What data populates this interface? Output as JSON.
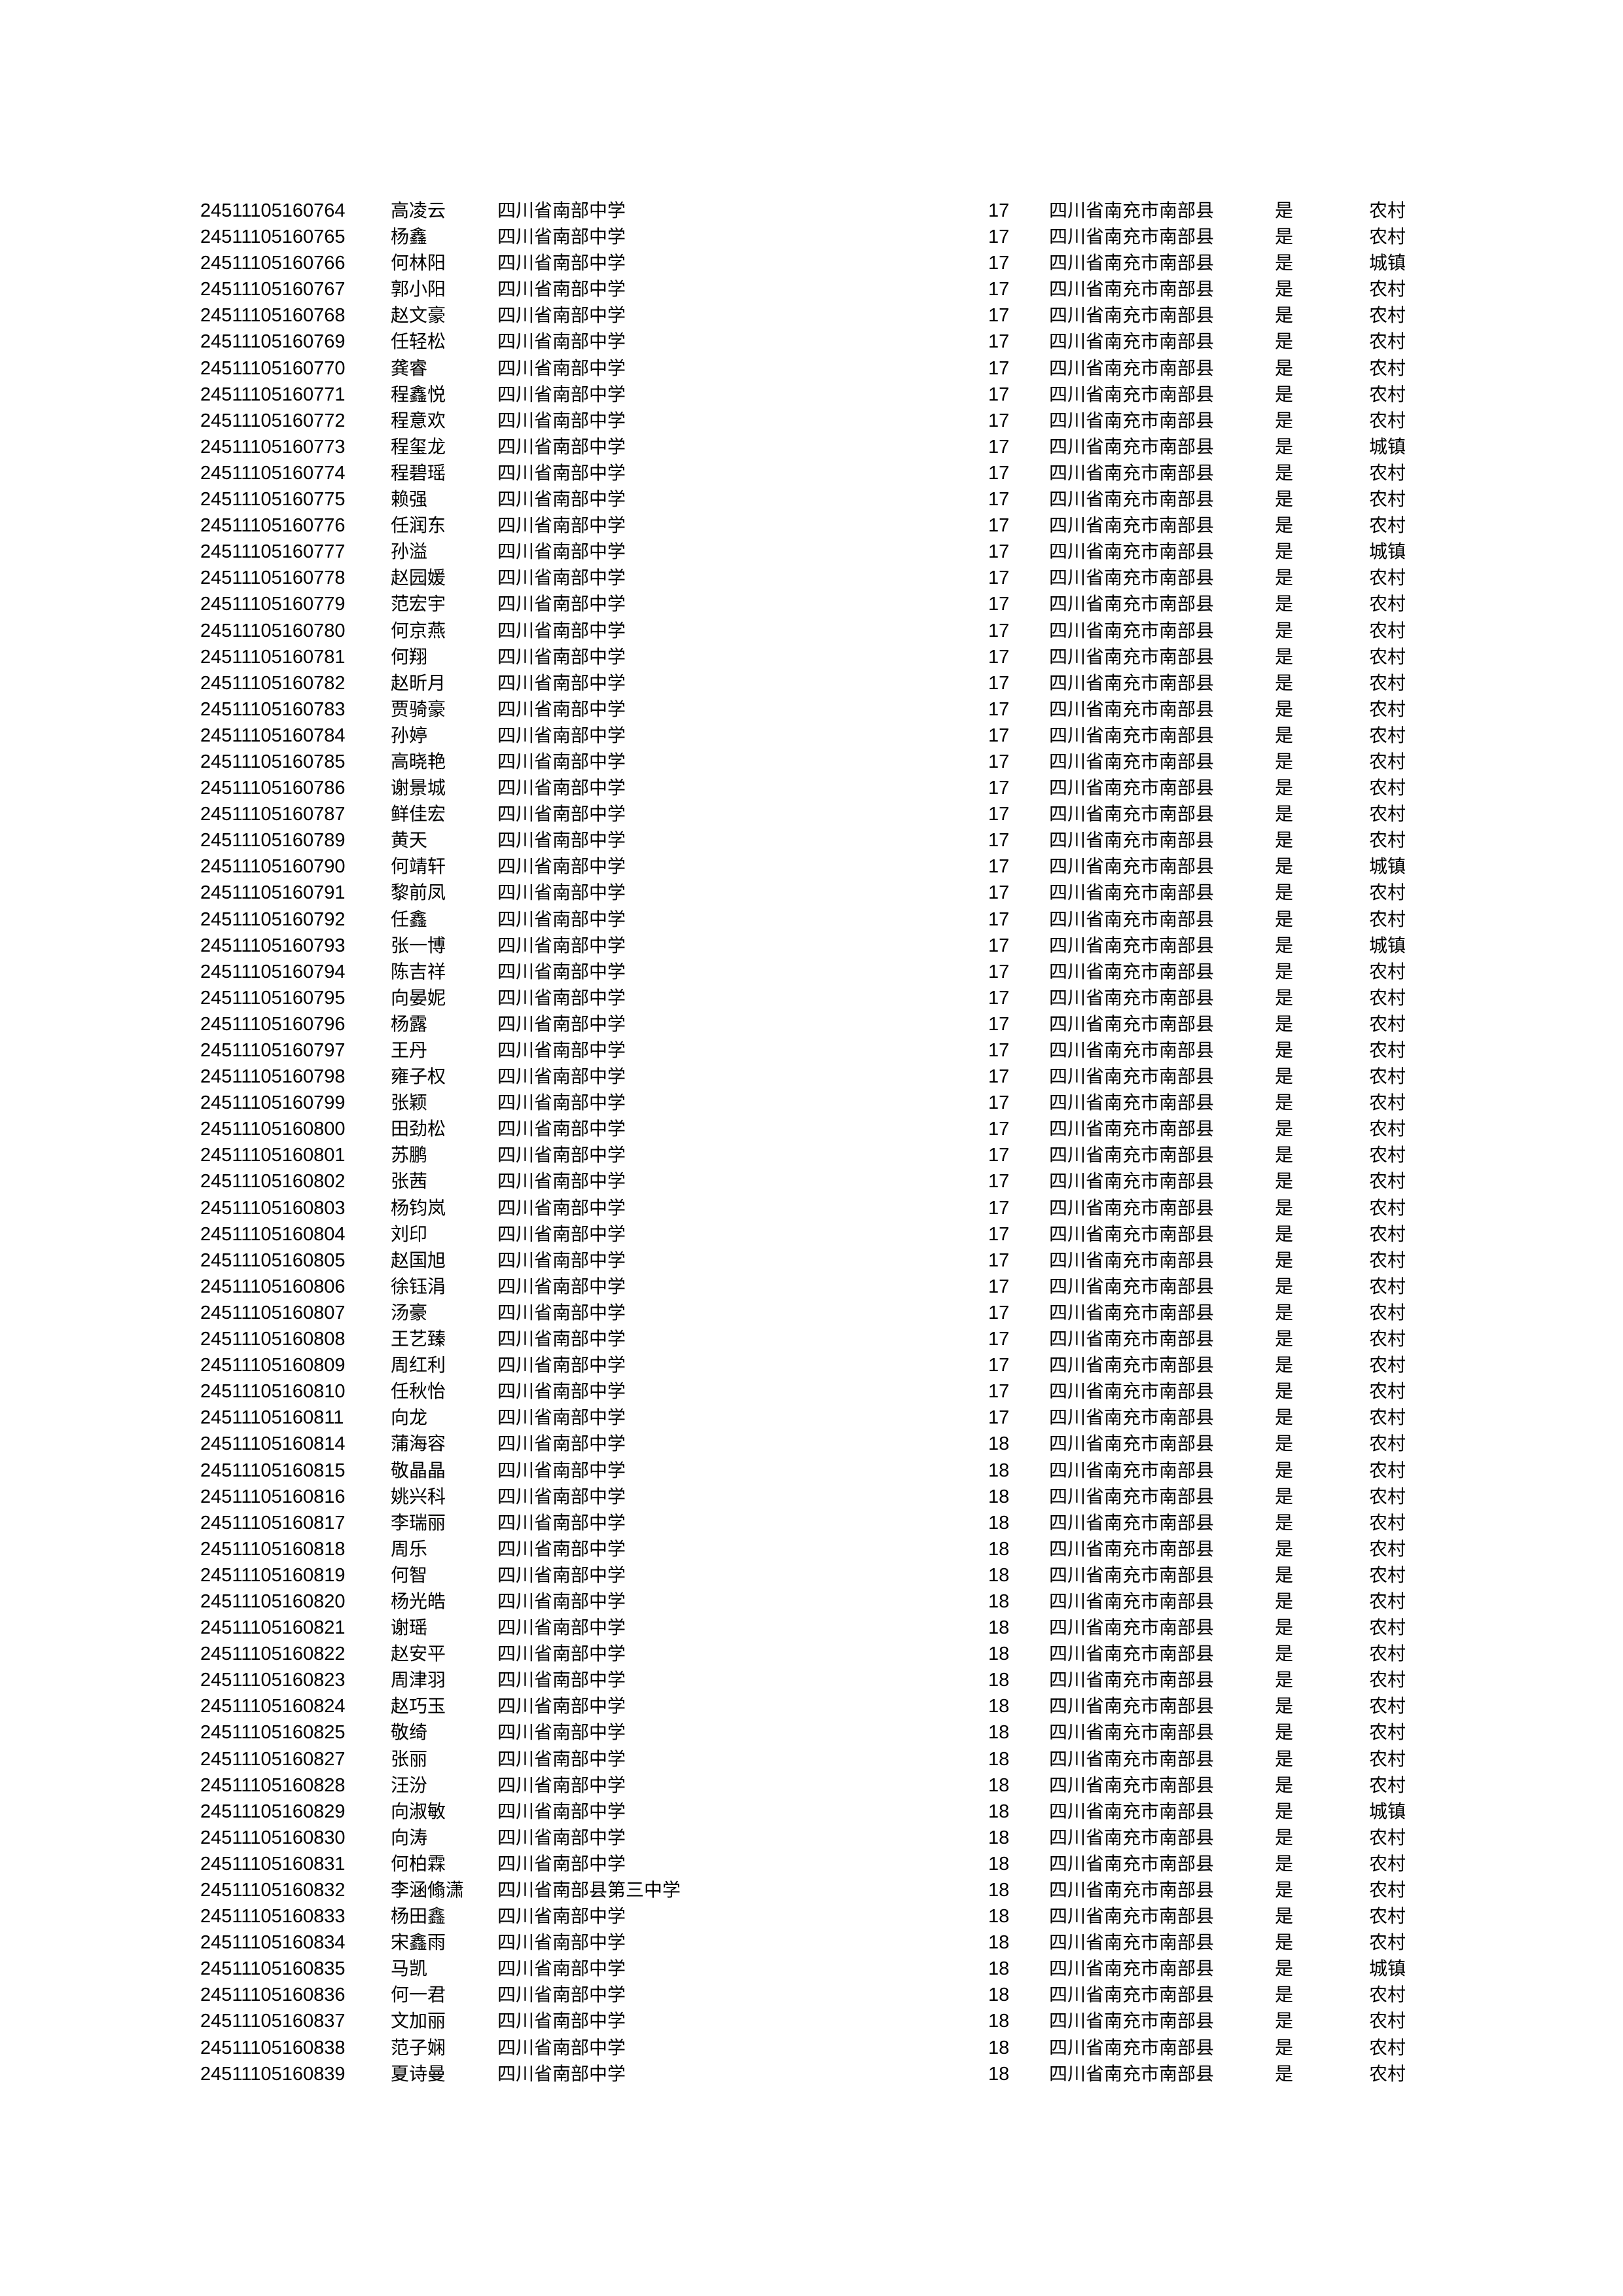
{
  "columns": [
    "id",
    "name",
    "school",
    "age",
    "address",
    "flag",
    "household"
  ],
  "rows": [
    [
      "24511105160764",
      "高凌云",
      "四川省南部中学",
      "17",
      "四川省南充市南部县",
      "是",
      "农村"
    ],
    [
      "24511105160765",
      "杨鑫",
      "四川省南部中学",
      "17",
      "四川省南充市南部县",
      "是",
      "农村"
    ],
    [
      "24511105160766",
      "何林阳",
      "四川省南部中学",
      "17",
      "四川省南充市南部县",
      "是",
      "城镇"
    ],
    [
      "24511105160767",
      "郭小阳",
      "四川省南部中学",
      "17",
      "四川省南充市南部县",
      "是",
      "农村"
    ],
    [
      "24511105160768",
      "赵文豪",
      "四川省南部中学",
      "17",
      "四川省南充市南部县",
      "是",
      "农村"
    ],
    [
      "24511105160769",
      "任轻松",
      "四川省南部中学",
      "17",
      "四川省南充市南部县",
      "是",
      "农村"
    ],
    [
      "24511105160770",
      "龚睿",
      "四川省南部中学",
      "17",
      "四川省南充市南部县",
      "是",
      "农村"
    ],
    [
      "24511105160771",
      "程鑫悦",
      "四川省南部中学",
      "17",
      "四川省南充市南部县",
      "是",
      "农村"
    ],
    [
      "24511105160772",
      "程意欢",
      "四川省南部中学",
      "17",
      "四川省南充市南部县",
      "是",
      "农村"
    ],
    [
      "24511105160773",
      "程玺龙",
      "四川省南部中学",
      "17",
      "四川省南充市南部县",
      "是",
      "城镇"
    ],
    [
      "24511105160774",
      "程碧瑶",
      "四川省南部中学",
      "17",
      "四川省南充市南部县",
      "是",
      "农村"
    ],
    [
      "24511105160775",
      "赖强",
      "四川省南部中学",
      "17",
      "四川省南充市南部县",
      "是",
      "农村"
    ],
    [
      "24511105160776",
      "任润东",
      "四川省南部中学",
      "17",
      "四川省南充市南部县",
      "是",
      "农村"
    ],
    [
      "24511105160777",
      "孙溢",
      "四川省南部中学",
      "17",
      "四川省南充市南部县",
      "是",
      "城镇"
    ],
    [
      "24511105160778",
      "赵园媛",
      "四川省南部中学",
      "17",
      "四川省南充市南部县",
      "是",
      "农村"
    ],
    [
      "24511105160779",
      "范宏宇",
      "四川省南部中学",
      "17",
      "四川省南充市南部县",
      "是",
      "农村"
    ],
    [
      "24511105160780",
      "何京燕",
      "四川省南部中学",
      "17",
      "四川省南充市南部县",
      "是",
      "农村"
    ],
    [
      "24511105160781",
      "何翔",
      "四川省南部中学",
      "17",
      "四川省南充市南部县",
      "是",
      "农村"
    ],
    [
      "24511105160782",
      "赵昕月",
      "四川省南部中学",
      "17",
      "四川省南充市南部县",
      "是",
      "农村"
    ],
    [
      "24511105160783",
      "贾骑豪",
      "四川省南部中学",
      "17",
      "四川省南充市南部县",
      "是",
      "农村"
    ],
    [
      "24511105160784",
      "孙婷",
      "四川省南部中学",
      "17",
      "四川省南充市南部县",
      "是",
      "农村"
    ],
    [
      "24511105160785",
      "高晓艳",
      "四川省南部中学",
      "17",
      "四川省南充市南部县",
      "是",
      "农村"
    ],
    [
      "24511105160786",
      "谢景城",
      "四川省南部中学",
      "17",
      "四川省南充市南部县",
      "是",
      "农村"
    ],
    [
      "24511105160787",
      "鲜佳宏",
      "四川省南部中学",
      "17",
      "四川省南充市南部县",
      "是",
      "农村"
    ],
    [
      "24511105160789",
      "黄天",
      "四川省南部中学",
      "17",
      "四川省南充市南部县",
      "是",
      "农村"
    ],
    [
      "24511105160790",
      "何靖轩",
      "四川省南部中学",
      "17",
      "四川省南充市南部县",
      "是",
      "城镇"
    ],
    [
      "24511105160791",
      "黎前凤",
      "四川省南部中学",
      "17",
      "四川省南充市南部县",
      "是",
      "农村"
    ],
    [
      "24511105160792",
      "任鑫",
      "四川省南部中学",
      "17",
      "四川省南充市南部县",
      "是",
      "农村"
    ],
    [
      "24511105160793",
      "张一博",
      "四川省南部中学",
      "17",
      "四川省南充市南部县",
      "是",
      "城镇"
    ],
    [
      "24511105160794",
      "陈吉祥",
      "四川省南部中学",
      "17",
      "四川省南充市南部县",
      "是",
      "农村"
    ],
    [
      "24511105160795",
      "向晏妮",
      "四川省南部中学",
      "17",
      "四川省南充市南部县",
      "是",
      "农村"
    ],
    [
      "24511105160796",
      "杨露",
      "四川省南部中学",
      "17",
      "四川省南充市南部县",
      "是",
      "农村"
    ],
    [
      "24511105160797",
      "王丹",
      "四川省南部中学",
      "17",
      "四川省南充市南部县",
      "是",
      "农村"
    ],
    [
      "24511105160798",
      "雍子权",
      "四川省南部中学",
      "17",
      "四川省南充市南部县",
      "是",
      "农村"
    ],
    [
      "24511105160799",
      "张颖",
      "四川省南部中学",
      "17",
      "四川省南充市南部县",
      "是",
      "农村"
    ],
    [
      "24511105160800",
      "田劲松",
      "四川省南部中学",
      "17",
      "四川省南充市南部县",
      "是",
      "农村"
    ],
    [
      "24511105160801",
      "苏鹏",
      "四川省南部中学",
      "17",
      "四川省南充市南部县",
      "是",
      "农村"
    ],
    [
      "24511105160802",
      "张茜",
      "四川省南部中学",
      "17",
      "四川省南充市南部县",
      "是",
      "农村"
    ],
    [
      "24511105160803",
      "杨钧岚",
      "四川省南部中学",
      "17",
      "四川省南充市南部县",
      "是",
      "农村"
    ],
    [
      "24511105160804",
      "刘印",
      "四川省南部中学",
      "17",
      "四川省南充市南部县",
      "是",
      "农村"
    ],
    [
      "24511105160805",
      "赵国旭",
      "四川省南部中学",
      "17",
      "四川省南充市南部县",
      "是",
      "农村"
    ],
    [
      "24511105160806",
      "徐钰涓",
      "四川省南部中学",
      "17",
      "四川省南充市南部县",
      "是",
      "农村"
    ],
    [
      "24511105160807",
      "汤豪",
      "四川省南部中学",
      "17",
      "四川省南充市南部县",
      "是",
      "农村"
    ],
    [
      "24511105160808",
      "王艺臻",
      "四川省南部中学",
      "17",
      "四川省南充市南部县",
      "是",
      "农村"
    ],
    [
      "24511105160809",
      "周红利",
      "四川省南部中学",
      "17",
      "四川省南充市南部县",
      "是",
      "农村"
    ],
    [
      "24511105160810",
      "任秋怡",
      "四川省南部中学",
      "17",
      "四川省南充市南部县",
      "是",
      "农村"
    ],
    [
      "24511105160811",
      "向龙",
      "四川省南部中学",
      "17",
      "四川省南充市南部县",
      "是",
      "农村"
    ],
    [
      "24511105160814",
      "蒲海容",
      "四川省南部中学",
      "18",
      "四川省南充市南部县",
      "是",
      "农村"
    ],
    [
      "24511105160815",
      "敬晶晶",
      "四川省南部中学",
      "18",
      "四川省南充市南部县",
      "是",
      "农村"
    ],
    [
      "24511105160816",
      "姚兴科",
      "四川省南部中学",
      "18",
      "四川省南充市南部县",
      "是",
      "农村"
    ],
    [
      "24511105160817",
      "李瑞丽",
      "四川省南部中学",
      "18",
      "四川省南充市南部县",
      "是",
      "农村"
    ],
    [
      "24511105160818",
      "周乐",
      "四川省南部中学",
      "18",
      "四川省南充市南部县",
      "是",
      "农村"
    ],
    [
      "24511105160819",
      "何智",
      "四川省南部中学",
      "18",
      "四川省南充市南部县",
      "是",
      "农村"
    ],
    [
      "24511105160820",
      "杨光皓",
      "四川省南部中学",
      "18",
      "四川省南充市南部县",
      "是",
      "农村"
    ],
    [
      "24511105160821",
      "谢瑶",
      "四川省南部中学",
      "18",
      "四川省南充市南部县",
      "是",
      "农村"
    ],
    [
      "24511105160822",
      "赵安平",
      "四川省南部中学",
      "18",
      "四川省南充市南部县",
      "是",
      "农村"
    ],
    [
      "24511105160823",
      "周津羽",
      "四川省南部中学",
      "18",
      "四川省南充市南部县",
      "是",
      "农村"
    ],
    [
      "24511105160824",
      "赵巧玉",
      "四川省南部中学",
      "18",
      "四川省南充市南部县",
      "是",
      "农村"
    ],
    [
      "24511105160825",
      "敬绮",
      "四川省南部中学",
      "18",
      "四川省南充市南部县",
      "是",
      "农村"
    ],
    [
      "24511105160827",
      "张丽",
      "四川省南部中学",
      "18",
      "四川省南充市南部县",
      "是",
      "农村"
    ],
    [
      "24511105160828",
      "汪汾",
      "四川省南部中学",
      "18",
      "四川省南充市南部县",
      "是",
      "农村"
    ],
    [
      "24511105160829",
      "向淑敏",
      "四川省南部中学",
      "18",
      "四川省南充市南部县",
      "是",
      "城镇"
    ],
    [
      "24511105160830",
      "向涛",
      "四川省南部中学",
      "18",
      "四川省南充市南部县",
      "是",
      "农村"
    ],
    [
      "24511105160831",
      "何柏霖",
      "四川省南部中学",
      "18",
      "四川省南充市南部县",
      "是",
      "农村"
    ],
    [
      "24511105160832",
      "李涵翛潇",
      "四川省南部县第三中学",
      "18",
      "四川省南充市南部县",
      "是",
      "农村"
    ],
    [
      "24511105160833",
      "杨田鑫",
      "四川省南部中学",
      "18",
      "四川省南充市南部县",
      "是",
      "农村"
    ],
    [
      "24511105160834",
      "宋鑫雨",
      "四川省南部中学",
      "18",
      "四川省南充市南部县",
      "是",
      "农村"
    ],
    [
      "24511105160835",
      "马凯",
      "四川省南部中学",
      "18",
      "四川省南充市南部县",
      "是",
      "城镇"
    ],
    [
      "24511105160836",
      "何一君",
      "四川省南部中学",
      "18",
      "四川省南充市南部县",
      "是",
      "农村"
    ],
    [
      "24511105160837",
      "文加丽",
      "四川省南部中学",
      "18",
      "四川省南充市南部县",
      "是",
      "农村"
    ],
    [
      "24511105160838",
      "范子娴",
      "四川省南部中学",
      "18",
      "四川省南充市南部县",
      "是",
      "农村"
    ],
    [
      "24511105160839",
      "夏诗曼",
      "四川省南部中学",
      "18",
      "四川省南充市南部县",
      "是",
      "农村"
    ]
  ]
}
